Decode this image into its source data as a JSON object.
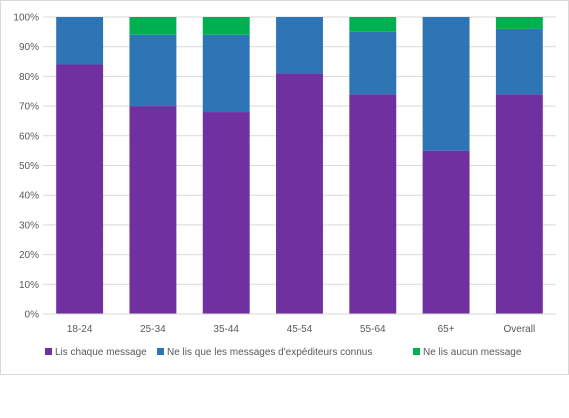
{
  "chart_data": {
    "type": "bar",
    "stacked": true,
    "percent": true,
    "categories": [
      "18-24",
      "25-34",
      "35-44",
      "45-54",
      "55-64",
      "65+",
      "Overall"
    ],
    "series": [
      {
        "name": "Lis chaque message",
        "color": "#7030a0",
        "values": [
          84,
          70,
          68,
          81,
          74,
          55,
          74
        ]
      },
      {
        "name": "Ne lis que les messages d'expéditeurs connus",
        "color": "#2e75b6",
        "values": [
          16,
          24,
          26,
          19,
          21,
          45,
          22
        ]
      },
      {
        "name": "Ne lis aucun message",
        "color": "#00b050",
        "values": [
          0,
          6,
          6,
          0,
          5,
          0,
          4
        ]
      }
    ],
    "ylim": [
      0,
      100
    ],
    "yticks": [
      "0%",
      "10%",
      "20%",
      "30%",
      "40%",
      "50%",
      "60%",
      "70%",
      "80%",
      "90%",
      "100%"
    ],
    "grid": true,
    "legend_position": "bottom",
    "title": "",
    "xlabel": "",
    "ylabel": ""
  }
}
